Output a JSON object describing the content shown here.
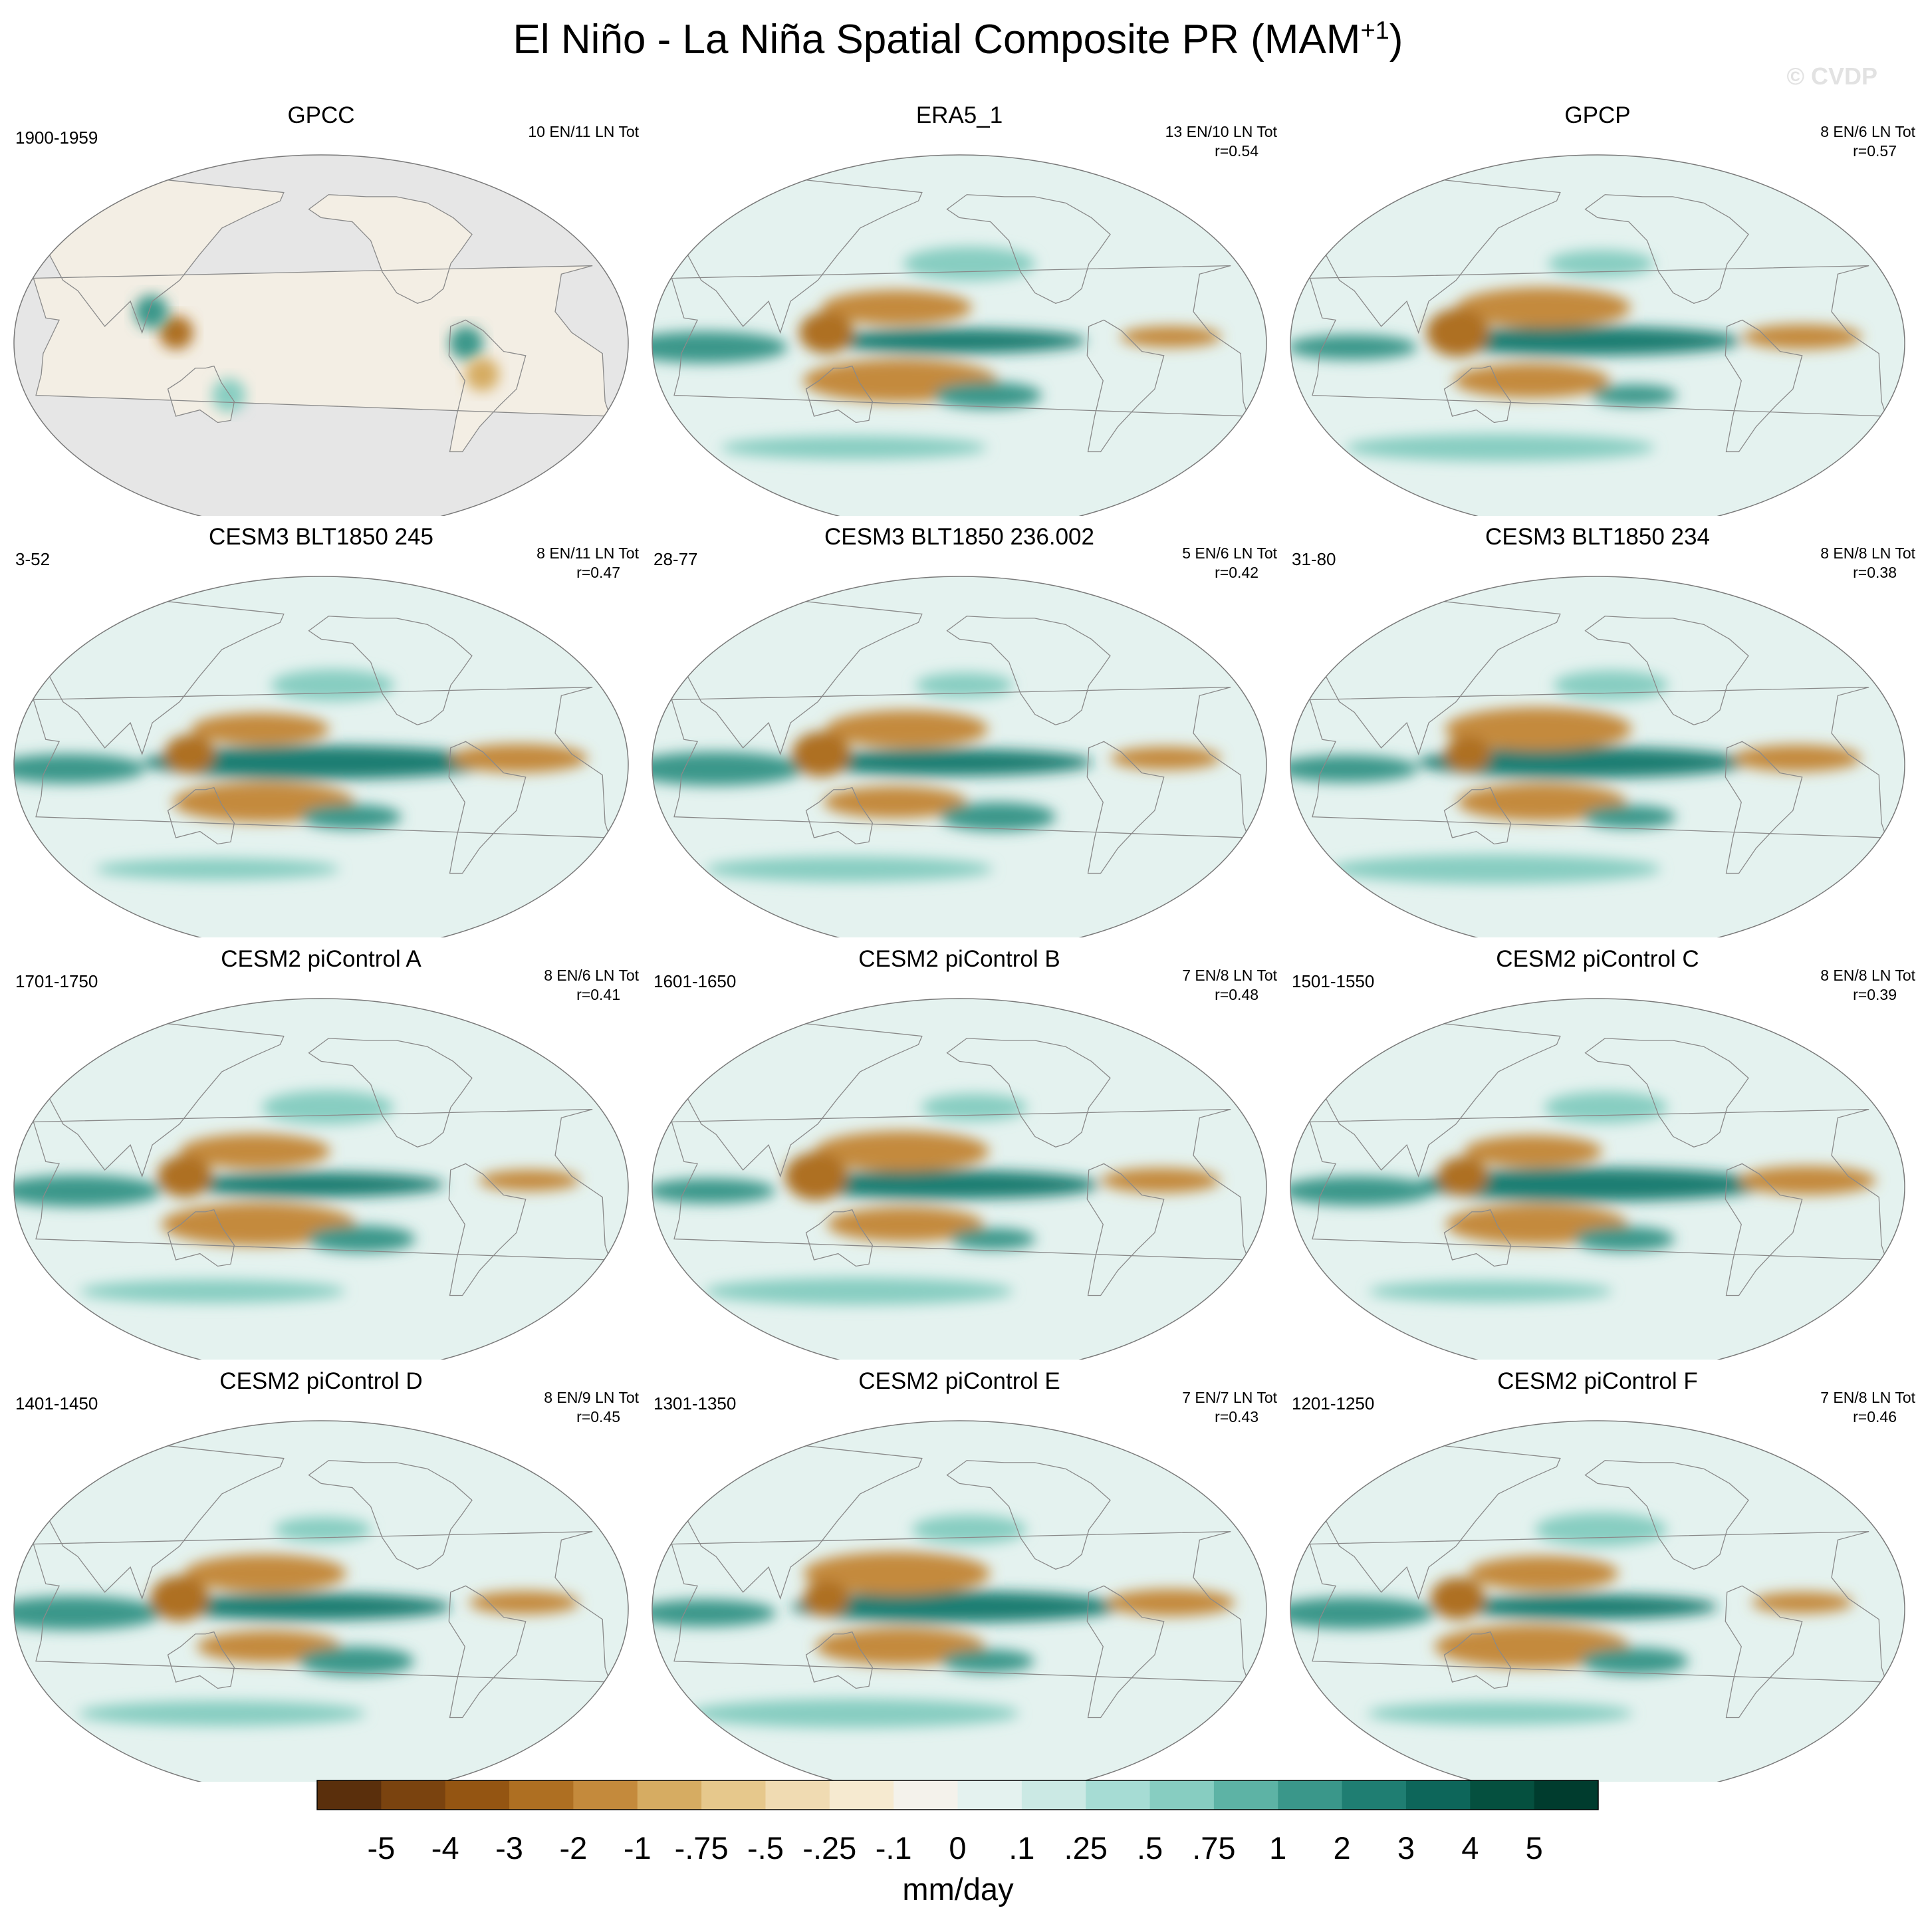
{
  "figure": {
    "title_main": "El Niño - La Niña Spatial Composite PR (MAM",
    "title_sup": "+1",
    "title_end": ")",
    "watermark": "© CVDP"
  },
  "chart_data": {
    "type": "heatmap",
    "projection": "Robinson (Pacific-centered)",
    "colorbar": {
      "levels": [
        "-5",
        "-4",
        "-3",
        "-2",
        "-1",
        "-.75",
        "-.5",
        "-.25",
        "-.1",
        "0",
        ".1",
        ".25",
        ".5",
        ".75",
        "1",
        "2",
        "3",
        "4",
        "5"
      ],
      "colors": [
        "#5a2f0c",
        "#7a430f",
        "#945512",
        "#ae6f22",
        "#c48a3c",
        "#d6ac62",
        "#e6c88c",
        "#f0dbb2",
        "#f6ead0",
        "#f4f2eb",
        "#e4f2ef",
        "#cbe9e4",
        "#a6dcd4",
        "#87cdc1",
        "#5db3a5",
        "#3a978a",
        "#1f7e72",
        "#0d665a",
        "#05503f",
        "#003c2e"
      ],
      "units": "mm/day"
    },
    "panels": [
      {
        "title": "GPCC",
        "years": "1900-1959",
        "events": "10 EN/11 LN Tot",
        "r": "",
        "land_only": true
      },
      {
        "title": "ERA5_1",
        "years": "",
        "events": "13 EN/10 LN Tot",
        "r": "r=0.54",
        "land_only": false
      },
      {
        "title": "GPCP",
        "years": "",
        "events": "8 EN/6 LN Tot",
        "r": "r=0.57",
        "land_only": false
      },
      {
        "title": "CESM3 BLT1850 245",
        "years": "3-52",
        "events": "8 EN/11 LN Tot",
        "r": "r=0.47",
        "land_only": false
      },
      {
        "title": "CESM3 BLT1850 236.002",
        "years": "28-77",
        "events": "5 EN/6 LN Tot",
        "r": "r=0.42",
        "land_only": false
      },
      {
        "title": "CESM3 BLT1850 234",
        "years": "31-80",
        "events": "8 EN/8 LN Tot",
        "r": "r=0.38",
        "land_only": false
      },
      {
        "title": "CESM2 piControl A",
        "years": "1701-1750",
        "events": "8 EN/6 LN Tot",
        "r": "r=0.41",
        "land_only": false
      },
      {
        "title": "CESM2 piControl B",
        "years": "1601-1650",
        "events": "7 EN/8 LN Tot",
        "r": "r=0.48",
        "land_only": false
      },
      {
        "title": "CESM2 piControl C",
        "years": "1501-1550",
        "events": "8 EN/8 LN Tot",
        "r": "r=0.39",
        "land_only": false
      },
      {
        "title": "CESM2 piControl D",
        "years": "1401-1450",
        "events": "8 EN/9 LN Tot",
        "r": "r=0.45",
        "land_only": false
      },
      {
        "title": "CESM2 piControl E",
        "years": "1301-1350",
        "events": "7 EN/7 LN Tot",
        "r": "r=0.43",
        "land_only": false
      },
      {
        "title": "CESM2 piControl F",
        "years": "1201-1250",
        "events": "7 EN/8 LN Tot",
        "r": "r=0.46",
        "land_only": false
      }
    ],
    "features": [
      {
        "name": "equatorial-pacific-wet",
        "sign": "wet",
        "value": 5,
        "lon": 205,
        "lat": 0,
        "dlon": 65,
        "dlat": 5
      },
      {
        "name": "central-pacific-wet",
        "sign": "wet",
        "value": 2,
        "lon": 200,
        "lat": 1,
        "dlon": 90,
        "dlat": 7
      },
      {
        "name": "indian-ocean-wet",
        "sign": "wet",
        "value": 1,
        "lon": 60,
        "lat": -2,
        "dlon": 45,
        "dlat": 7
      },
      {
        "name": "north-pacific-dry",
        "sign": "dry",
        "value": -2,
        "lon": 170,
        "lat": 17,
        "dlon": 48,
        "dlat": 9
      },
      {
        "name": "south-pacific-dry",
        "sign": "dry",
        "value": -2,
        "lon": 170,
        "lat": -18,
        "dlon": 50,
        "dlat": 9
      },
      {
        "name": "maritime-continent-dry",
        "sign": "dry",
        "value": -3,
        "lon": 125,
        "lat": 5,
        "dlon": 16,
        "dlat": 10
      },
      {
        "name": "amazon-atlantic-dry",
        "sign": "dry",
        "value": -2,
        "lon": 325,
        "lat": 3,
        "dlon": 35,
        "dlat": 6
      },
      {
        "name": "south-pacific-wet-band",
        "sign": "wet",
        "value": 1,
        "lon": 225,
        "lat": -25,
        "dlon": 30,
        "dlat": 6
      },
      {
        "name": "southern-ocean-wet",
        "sign": "wet",
        "value": 0.5,
        "lon": 140,
        "lat": -50,
        "dlon": 90,
        "dlat": 6
      },
      {
        "name": "north-pacific-wet",
        "sign": "wet",
        "value": 0.5,
        "lon": 210,
        "lat": 38,
        "dlon": 35,
        "dlat": 7
      }
    ]
  }
}
